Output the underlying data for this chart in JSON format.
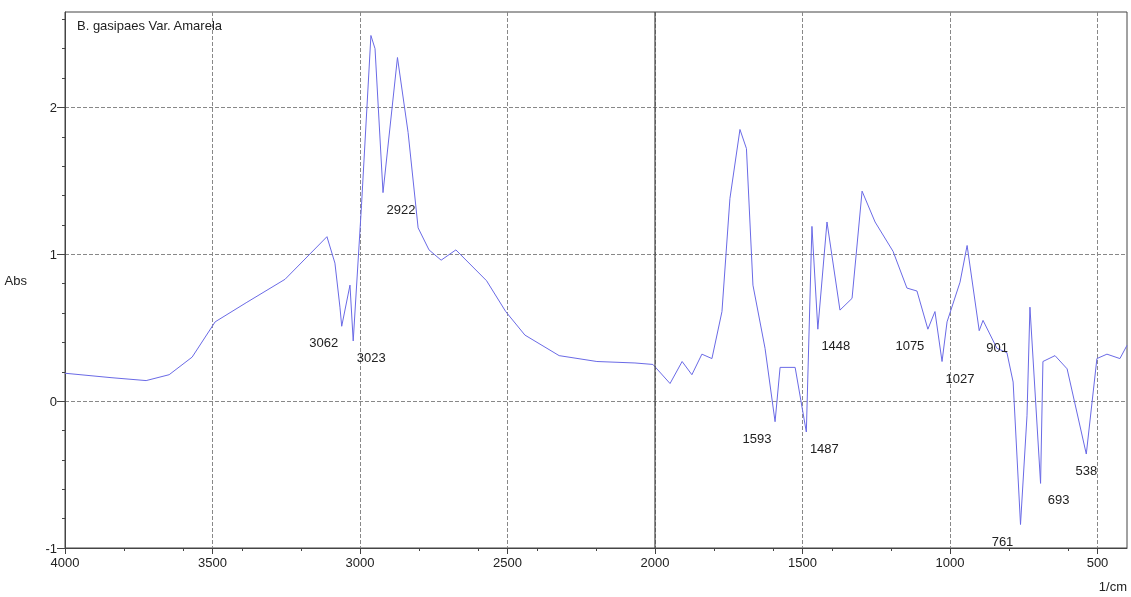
{
  "chart_data": {
    "type": "line",
    "title": "B. gasipaes Var. Amarela",
    "xlabel": "1/cm",
    "ylabel": "Abs",
    "xlim": [
      4000,
      400
    ],
    "xticks": [
      4000,
      3500,
      3000,
      2500,
      2000,
      1500,
      1000,
      500
    ],
    "ylim": [
      -1,
      2.65
    ],
    "yticks": [
      -1,
      0,
      1,
      2
    ],
    "grid": true,
    "marker": "none",
    "line_style": "solid",
    "ref_lines": [
      {
        "axis": "x",
        "value": 2000,
        "color": "#444444",
        "line_style": "solid"
      }
    ],
    "series": [
      {
        "color": "#6a6ae6",
        "x": [
          4000,
          3844,
          3725,
          3647,
          3569,
          3491,
          3386,
          3254,
          3112,
          3085,
          3068,
          3062,
          3034,
          3023,
          2995,
          2963,
          2949,
          2922,
          2873,
          2837,
          2803,
          2766,
          2725,
          2675,
          2571,
          2506,
          2441,
          2325,
          2197,
          2068,
          2007,
          1949,
          1908,
          1875,
          1841,
          1807,
          1773,
          1746,
          1712,
          1690,
          1668,
          1627,
          1593,
          1576,
          1525,
          1487,
          1468,
          1448,
          1417,
          1373,
          1332,
          1298,
          1254,
          1193,
          1146,
          1112,
          1075,
          1051,
          1027,
          1010,
          966,
          942,
          901,
          888,
          841,
          807,
          786,
          761,
          739,
          729,
          693,
          685,
          644,
          603,
          538,
          502,
          468,
          424,
          400
        ],
        "values": [
          0.19,
          0.16,
          0.14,
          0.18,
          0.3,
          0.54,
          0.67,
          0.83,
          1.12,
          0.94,
          0.64,
          0.51,
          0.79,
          0.41,
          1.33,
          2.49,
          2.4,
          1.42,
          2.34,
          1.83,
          1.18,
          1.03,
          0.96,
          1.03,
          0.82,
          0.61,
          0.45,
          0.31,
          0.27,
          0.26,
          0.25,
          0.12,
          0.27,
          0.18,
          0.32,
          0.29,
          0.61,
          1.38,
          1.85,
          1.72,
          0.79,
          0.36,
          -0.14,
          0.23,
          0.23,
          -0.21,
          1.19,
          0.49,
          1.22,
          0.62,
          0.7,
          1.43,
          1.22,
          1.02,
          0.77,
          0.75,
          0.49,
          0.61,
          0.27,
          0.54,
          0.81,
          1.06,
          0.48,
          0.55,
          0.36,
          0.33,
          0.13,
          -0.84,
          -0.1,
          0.64,
          -0.56,
          0.27,
          0.31,
          0.22,
          -0.36,
          0.29,
          0.32,
          0.29,
          0.38
        ]
      }
    ],
    "annotations": [
      {
        "text": "3062",
        "x": 3062,
        "y": 0.51
      },
      {
        "text": "3023",
        "x": 3023,
        "y": 0.41
      },
      {
        "text": "2922",
        "x": 2922,
        "y": 1.42
      },
      {
        "text": "1593",
        "x": 1593,
        "y": -0.14
      },
      {
        "text": "1487",
        "x": 1487,
        "y": -0.21
      },
      {
        "text": "1448",
        "x": 1448,
        "y": 0.49
      },
      {
        "text": "1075",
        "x": 1075,
        "y": 0.49
      },
      {
        "text": "1027",
        "x": 1027,
        "y": 0.27
      },
      {
        "text": "901",
        "x": 901,
        "y": 0.48
      },
      {
        "text": "761",
        "x": 761,
        "y": -0.84
      },
      {
        "text": "693",
        "x": 693,
        "y": -0.56
      },
      {
        "text": "538",
        "x": 538,
        "y": -0.36
      }
    ]
  }
}
